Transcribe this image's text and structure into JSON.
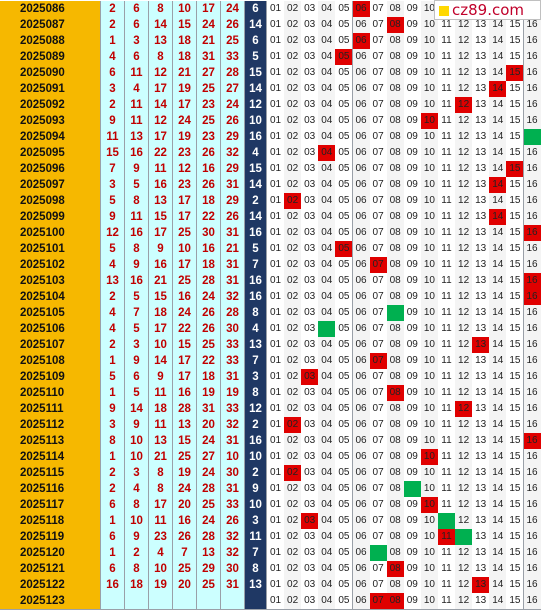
{
  "site_logo": "cz89.com",
  "rows": [
    {
      "issue": "2025086",
      "nums": [
        2,
        6,
        8,
        10,
        17,
        24
      ],
      "blue": 6,
      "marks": {
        "6": "r"
      }
    },
    {
      "issue": "2025087",
      "nums": [
        2,
        6,
        14,
        15,
        24,
        26
      ],
      "blue": 14,
      "marks": {
        "8": "r"
      }
    },
    {
      "issue": "2025088",
      "nums": [
        1,
        3,
        13,
        18,
        21,
        25
      ],
      "blue": 6,
      "marks": {
        "6": "r"
      }
    },
    {
      "issue": "2025089",
      "nums": [
        4,
        6,
        8,
        18,
        31,
        33
      ],
      "blue": 5,
      "marks": {
        "5": "r"
      }
    },
    {
      "issue": "2025090",
      "nums": [
        6,
        11,
        12,
        21,
        27,
        28
      ],
      "blue": 15,
      "marks": {
        "15": "r"
      }
    },
    {
      "issue": "2025091",
      "nums": [
        3,
        4,
        17,
        19,
        25,
        27
      ],
      "blue": 14,
      "marks": {
        "14": "r"
      }
    },
    {
      "issue": "2025092",
      "nums": [
        2,
        11,
        14,
        17,
        23,
        24
      ],
      "blue": 12,
      "marks": {
        "12": "r"
      }
    },
    {
      "issue": "2025093",
      "nums": [
        9,
        11,
        12,
        24,
        25,
        26
      ],
      "blue": 10,
      "marks": {
        "10": "r"
      }
    },
    {
      "issue": "2025094",
      "nums": [
        11,
        13,
        17,
        19,
        23,
        29
      ],
      "blue": 16,
      "marks": {
        "16": "g"
      }
    },
    {
      "issue": "2025095",
      "nums": [
        15,
        16,
        22,
        23,
        26,
        32
      ],
      "blue": 4,
      "marks": {
        "4": "r"
      }
    },
    {
      "issue": "2025096",
      "nums": [
        7,
        9,
        11,
        12,
        16,
        29
      ],
      "blue": 15,
      "marks": {
        "15": "r"
      }
    },
    {
      "issue": "2025097",
      "nums": [
        3,
        5,
        16,
        23,
        26,
        31
      ],
      "blue": 14,
      "marks": {
        "14": "r"
      }
    },
    {
      "issue": "2025098",
      "nums": [
        5,
        8,
        13,
        17,
        18,
        29
      ],
      "blue": 2,
      "marks": {
        "2": "r"
      }
    },
    {
      "issue": "2025099",
      "nums": [
        9,
        11,
        15,
        17,
        22,
        26
      ],
      "blue": 14,
      "marks": {
        "14": "r"
      }
    },
    {
      "issue": "2025100",
      "nums": [
        12,
        16,
        17,
        25,
        30,
        31
      ],
      "blue": 16,
      "marks": {
        "16": "r"
      }
    },
    {
      "issue": "2025101",
      "nums": [
        5,
        8,
        9,
        10,
        16,
        21
      ],
      "blue": 5,
      "marks": {
        "5": "r"
      }
    },
    {
      "issue": "2025102",
      "nums": [
        4,
        9,
        16,
        17,
        18,
        31
      ],
      "blue": 7,
      "marks": {
        "7": "r"
      }
    },
    {
      "issue": "2025103",
      "nums": [
        13,
        16,
        21,
        25,
        28,
        31
      ],
      "blue": 16,
      "marks": {
        "16": "r"
      }
    },
    {
      "issue": "2025104",
      "nums": [
        2,
        5,
        15,
        16,
        24,
        32
      ],
      "blue": 16,
      "marks": {
        "16": "r"
      }
    },
    {
      "issue": "2025105",
      "nums": [
        4,
        7,
        18,
        24,
        26,
        28
      ],
      "blue": 8,
      "marks": {
        "8": "g"
      }
    },
    {
      "issue": "2025106",
      "nums": [
        4,
        5,
        17,
        22,
        26,
        30
      ],
      "blue": 4,
      "marks": {
        "4": "g"
      }
    },
    {
      "issue": "2025107",
      "nums": [
        2,
        3,
        10,
        15,
        25,
        33
      ],
      "blue": 13,
      "marks": {
        "13": "r"
      }
    },
    {
      "issue": "2025108",
      "nums": [
        1,
        9,
        14,
        17,
        22,
        33
      ],
      "blue": 7,
      "marks": {
        "7": "r"
      }
    },
    {
      "issue": "2025109",
      "nums": [
        5,
        6,
        9,
        17,
        18,
        31
      ],
      "blue": 3,
      "marks": {
        "3": "r"
      }
    },
    {
      "issue": "2025110",
      "nums": [
        1,
        5,
        11,
        16,
        19,
        19
      ],
      "blue": 8,
      "marks": {
        "8": "r"
      }
    },
    {
      "issue": "2025111",
      "nums": [
        9,
        14,
        18,
        28,
        31,
        33
      ],
      "blue": 12,
      "marks": {
        "12": "r"
      }
    },
    {
      "issue": "2025112",
      "nums": [
        3,
        9,
        11,
        13,
        20,
        32
      ],
      "blue": 2,
      "marks": {
        "2": "r"
      }
    },
    {
      "issue": "2025113",
      "nums": [
        8,
        10,
        13,
        15,
        24,
        31
      ],
      "blue": 16,
      "marks": {
        "16": "r"
      }
    },
    {
      "issue": "2025114",
      "nums": [
        1,
        10,
        21,
        25,
        27,
        10
      ],
      "blue": 10,
      "marks": {
        "10": "r"
      }
    },
    {
      "issue": "2025115",
      "nums": [
        2,
        3,
        8,
        19,
        24,
        30
      ],
      "blue": 2,
      "marks": {
        "2": "r"
      }
    },
    {
      "issue": "2025116",
      "nums": [
        2,
        4,
        8,
        24,
        28,
        31
      ],
      "blue": 9,
      "marks": {
        "9": "g"
      }
    },
    {
      "issue": "2025117",
      "nums": [
        6,
        8,
        17,
        20,
        25,
        33
      ],
      "blue": 10,
      "marks": {
        "10": "r"
      }
    },
    {
      "issue": "2025118",
      "nums": [
        1,
        10,
        11,
        16,
        24,
        26
      ],
      "blue": 3,
      "marks": {
        "3": "r",
        "11": "g"
      }
    },
    {
      "issue": "2025119",
      "nums": [
        6,
        9,
        23,
        26,
        28,
        32
      ],
      "blue": 11,
      "marks": {
        "11": "r",
        "12": "g"
      }
    },
    {
      "issue": "2025120",
      "nums": [
        1,
        2,
        4,
        7,
        13,
        32
      ],
      "blue": 7,
      "marks": {
        "7": "g"
      }
    },
    {
      "issue": "2025121",
      "nums": [
        6,
        8,
        10,
        25,
        29,
        30
      ],
      "blue": 8,
      "marks": {
        "8": "r"
      }
    },
    {
      "issue": "2025122",
      "nums": [
        16,
        18,
        19,
        20,
        25,
        31
      ],
      "blue": 13,
      "marks": {
        "13": "r"
      }
    },
    {
      "issue": "2025123",
      "nums": [],
      "blue": "",
      "marks": {
        "7": "r",
        "8": "r"
      }
    }
  ],
  "zone_labels": [
    "01",
    "02",
    "03",
    "04",
    "05",
    "06",
    "07",
    "08",
    "09",
    "10",
    "11",
    "12",
    "13",
    "14",
    "15",
    "16"
  ],
  "colors": {
    "issue_bg": "#f6b800",
    "num_bg": "#ccffff",
    "num_fg": "#c00000",
    "blue_bg": "#1f3864",
    "red_mark": "#e00000",
    "green_mark": "#00b050"
  }
}
